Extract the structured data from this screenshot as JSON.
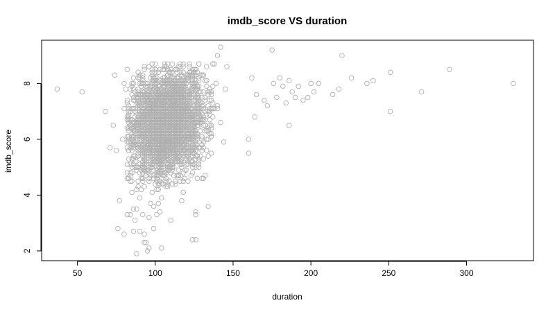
{
  "chart_data": {
    "type": "scatter",
    "title": "imdb_score VS duration",
    "xlabel": "duration",
    "ylabel": "imdb_score",
    "xlim": [
      27,
      343
    ],
    "ylim": [
      1.65,
      9.55
    ],
    "xticks": [
      50,
      100,
      150,
      200,
      250,
      300
    ],
    "yticks": [
      2,
      4,
      6,
      8
    ],
    "xtick_labels": [
      "50",
      "100",
      "150",
      "200",
      "250",
      "300"
    ],
    "ytick_labels": [
      "2",
      "4",
      "6",
      "8"
    ],
    "grid": false,
    "legend": "none",
    "marker": "open-circle",
    "point_color": "#b0b0b0",
    "points": [
      [
        37,
        7.8
      ],
      [
        53,
        7.7
      ],
      [
        68,
        7.0
      ],
      [
        71,
        5.7
      ],
      [
        73,
        6.5
      ],
      [
        74,
        8.3
      ],
      [
        75,
        5.6
      ],
      [
        77,
        3.8
      ],
      [
        76,
        2.8
      ],
      [
        79,
        6.0
      ],
      [
        80,
        7.1
      ],
      [
        80,
        2.6
      ],
      [
        81,
        7.8
      ],
      [
        80,
        8.0
      ],
      [
        82,
        4.8
      ],
      [
        82,
        3.3
      ],
      [
        84,
        3.3
      ],
      [
        84,
        4.5
      ],
      [
        85,
        4.1
      ],
      [
        86,
        2.7
      ],
      [
        86,
        3.5
      ],
      [
        87,
        3.1
      ],
      [
        88,
        3.5
      ],
      [
        88,
        1.9
      ],
      [
        89,
        4.3
      ],
      [
        90,
        2.7
      ],
      [
        90,
        3.9
      ],
      [
        91,
        4.6
      ],
      [
        92,
        3.3
      ],
      [
        93,
        2.3
      ],
      [
        93,
        2.6
      ],
      [
        94,
        2.3
      ],
      [
        95,
        2.0
      ],
      [
        96,
        2.1
      ],
      [
        96,
        3.2
      ],
      [
        97,
        3.7
      ],
      [
        98,
        4.1
      ],
      [
        99,
        3.6
      ],
      [
        99,
        2.8
      ],
      [
        100,
        4.4
      ],
      [
        101,
        3.3
      ],
      [
        102,
        3.7
      ],
      [
        103,
        3.4
      ],
      [
        104,
        2.1
      ],
      [
        104,
        3.9
      ],
      [
        107,
        4.6
      ],
      [
        108,
        4.3
      ],
      [
        110,
        3.1
      ],
      [
        113,
        4.4
      ],
      [
        117,
        3.8
      ],
      [
        118,
        4.1
      ],
      [
        120,
        4.9
      ],
      [
        121,
        4.5
      ],
      [
        124,
        2.4
      ],
      [
        126,
        2.4
      ],
      [
        126,
        3.3
      ],
      [
        126,
        3.4
      ],
      [
        130,
        4.6
      ],
      [
        131,
        4.6
      ],
      [
        134,
        3.6
      ],
      [
        140,
        9.0
      ],
      [
        142,
        9.3
      ],
      [
        146,
        8.6
      ],
      [
        160,
        5.5
      ],
      [
        160,
        6.0
      ],
      [
        162,
        8.2
      ],
      [
        164,
        6.8
      ],
      [
        165,
        7.6
      ],
      [
        170,
        7.4
      ],
      [
        172,
        7.2
      ],
      [
        175,
        9.2
      ],
      [
        176,
        8.0
      ],
      [
        178,
        7.5
      ],
      [
        180,
        8.2
      ],
      [
        182,
        7.9
      ],
      [
        184,
        7.3
      ],
      [
        186,
        8.1
      ],
      [
        186,
        6.5
      ],
      [
        188,
        7.7
      ],
      [
        190,
        7.5
      ],
      [
        192,
        7.9
      ],
      [
        195,
        7.4
      ],
      [
        198,
        7.5
      ],
      [
        200,
        8.0
      ],
      [
        202,
        7.7
      ],
      [
        205,
        8.0
      ],
      [
        214,
        7.6
      ],
      [
        218,
        7.8
      ],
      [
        220,
        9.0
      ],
      [
        226,
        8.2
      ],
      [
        236,
        8.0
      ],
      [
        240,
        8.1
      ],
      [
        251,
        8.4
      ],
      [
        251,
        7.0
      ],
      [
        271,
        7.7
      ],
      [
        289,
        8.5
      ],
      [
        330,
        8.0
      ]
    ],
    "cluster": {
      "x_center": 107,
      "x_spread": 12,
      "y_center": 6.6,
      "y_spread": 0.9,
      "approx_count": 3000
    }
  }
}
